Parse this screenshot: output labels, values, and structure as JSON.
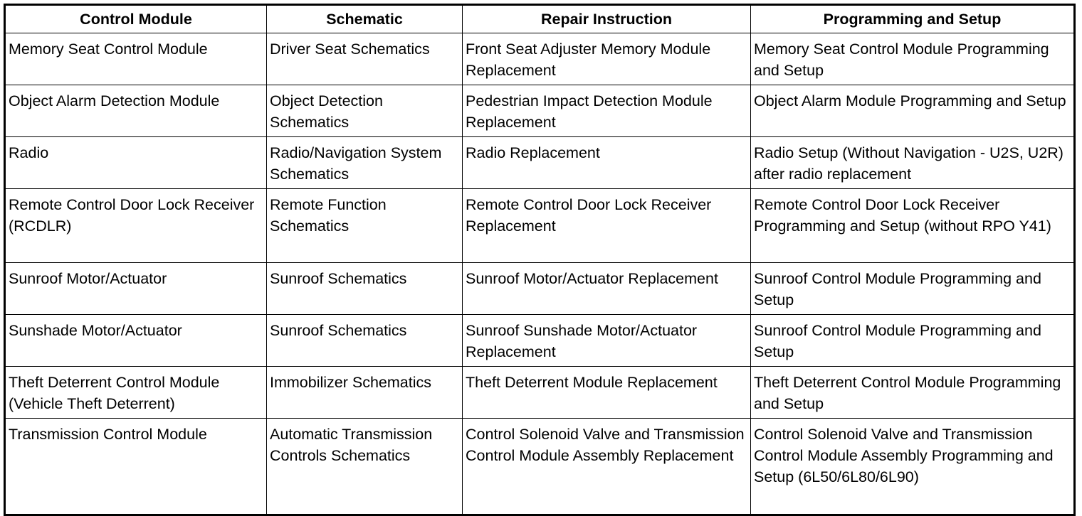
{
  "headers": [
    "Control Module",
    "Schematic",
    "Repair Instruction",
    "Programming and Setup"
  ],
  "rows": [
    [
      "Memory Seat Control Module",
      "Driver Seat Schematics",
      "Front Seat Adjuster Memory Module Replacement",
      "Memory Seat Control Module Programming and Setup"
    ],
    [
      "Object Alarm Detection Module",
      "Object Detection Schematics",
      "Pedestrian Impact Detection Module Replacement",
      "Object Alarm Module Programming and Setup"
    ],
    [
      "Radio",
      "Radio/Navigation System Schematics",
      "Radio Replacement",
      "Radio Setup (Without Navigation - U2S, U2R) after radio replacement"
    ],
    [
      "Remote Control Door Lock Receiver (RCDLR)",
      "Remote Function Schematics",
      "Remote Control Door Lock Receiver Replacement",
      "Remote Control Door Lock Receiver Programming and Setup (without RPO Y41)"
    ],
    [
      "Sunroof Motor/Actuator",
      "Sunroof Schematics",
      "Sunroof Motor/Actuator Replacement",
      "Sunroof Control Module Programming and Setup"
    ],
    [
      "Sunshade Motor/Actuator",
      "Sunroof Schematics",
      "Sunroof Sunshade Motor/Actuator Replacement",
      "Sunroof Control Module Programming and Setup"
    ],
    [
      "Theft Deterrent Control Module (Vehicle Theft Deterrent)",
      "Immobilizer Schematics",
      "Theft Deterrent Module Replacement",
      "Theft Deterrent Control Module Programming and Setup"
    ],
    [
      "Transmission Control Module",
      "Automatic Transmission Controls Schematics",
      "Control Solenoid Valve and Transmission Control Module Assembly Replacement",
      "Control Solenoid Valve and Transmission Control Module Assembly Programming and Setup (6L50/6L80/6L90)"
    ]
  ]
}
